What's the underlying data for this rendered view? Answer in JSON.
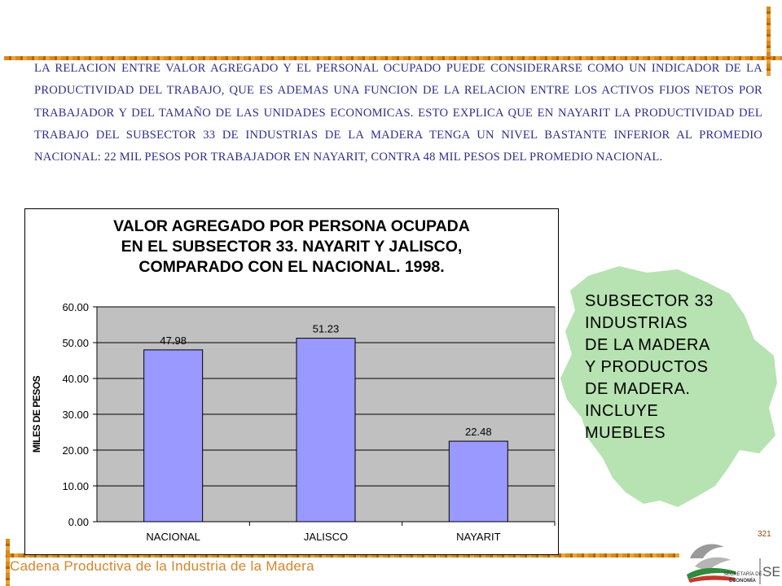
{
  "intro": {
    "text": "LA RELACION ENTRE VALOR AGREGADO Y EL PERSONAL OCUPADO PUEDE CONSIDERARSE COMO UN INDICADOR DE LA PRODUCTIVIDAD DEL TRABAJO, QUE ES ADEMAS UNA FUNCION DE LA RELACION ENTRE LOS ACTIVOS FIJOS NETOS POR TRABAJADOR Y DEL TAMAÑO DE LAS UNIDADES ECONOMICAS. ESTO EXPLICA QUE EN NAYARIT LA PRODUCTIVIDAD DEL TRABAJO DEL SUBSECTOR 33 DE INDUSTRIAS DE LA MADERA TENGA UN NIVEL BASTANTE INFERIOR AL PROMEDIO NACIONAL: 22 MIL PESOS POR TRABAJADOR EN NAYARIT, CONTRA 48 MIL PESOS DEL PROMEDIO NACIONAL."
  },
  "chart_data": {
    "type": "bar",
    "title_lines": [
      "VALOR AGREGADO POR PERSONA OCUPADA",
      "EN EL SUBSECTOR 33. NAYARIT Y JALISCO,",
      "COMPARADO CON EL NACIONAL. 1998."
    ],
    "categories": [
      "NACIONAL",
      "JALISCO",
      "NAYARIT"
    ],
    "values": [
      47.98,
      51.23,
      22.48
    ],
    "value_labels": [
      "47.98",
      "51.23",
      "22.48"
    ],
    "ylabel": "MILES DE PESOS",
    "xlabel": "",
    "ylim": [
      0,
      60
    ],
    "yticks": [
      "0.00",
      "10.00",
      "20.00",
      "30.00",
      "40.00",
      "50.00",
      "60.00"
    ],
    "grid": true,
    "legend": "none",
    "plot_background": "#c0c0c0",
    "bar_color": "#9999ff"
  },
  "side_note": {
    "lines": [
      "SUBSECTOR 33",
      "INDUSTRIAS",
      "DE LA MADERA",
      "Y PRODUCTOS",
      "DE MADERA.",
      "INCLUYE",
      "MUEBLES"
    ]
  },
  "map": {
    "color": "#b7e2b1",
    "icon": "nayarit-map-silhouette"
  },
  "footer": {
    "page_number": "321",
    "title": "Cadena Productiva de la Industria de la Madera",
    "logo_text_1": "SECRETARÍA DE",
    "logo_text_2": "ECONOMÍA",
    "logo_mark": "SE"
  },
  "colors": {
    "accent_orange": "#d98a18",
    "text_blue": "#2e2e8c",
    "footer_orange": "#d6852b"
  }
}
